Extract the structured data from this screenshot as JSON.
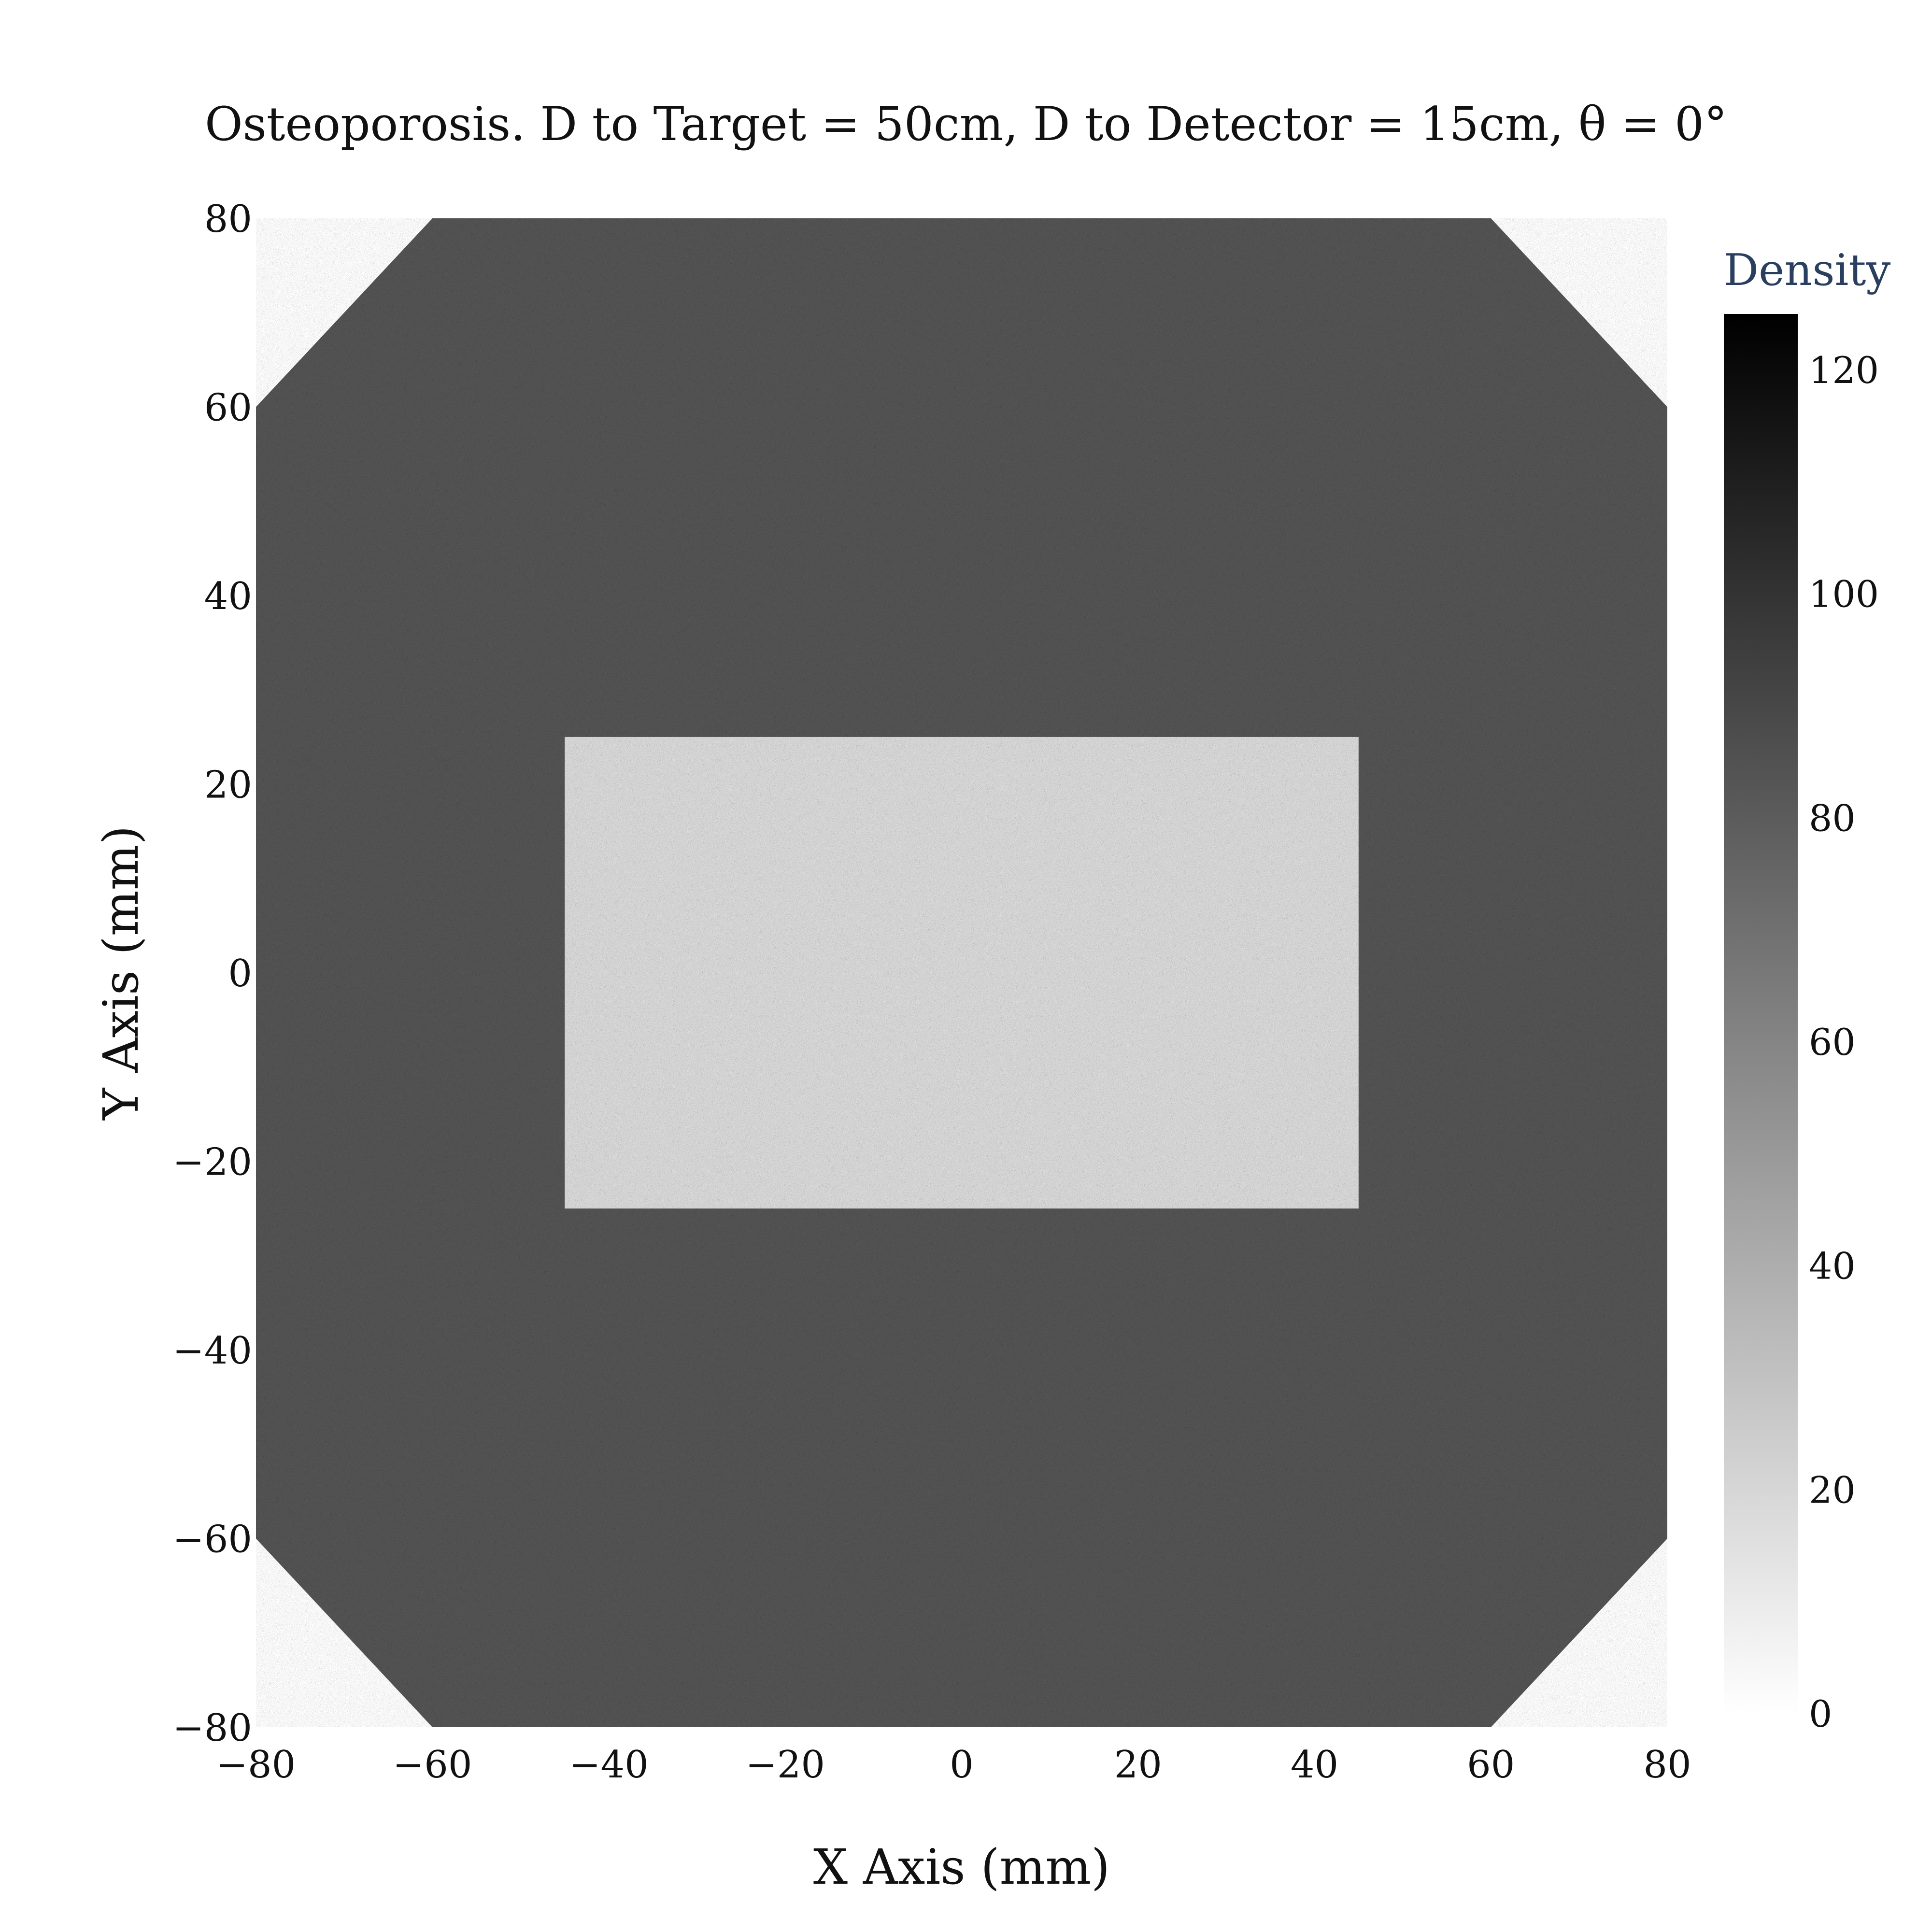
{
  "chart_data": {
    "type": "heatmap",
    "title": "Osteoporosis. D to Target = 50cm, D to Detector = 15cm, θ = 0°",
    "xlabel": "X Axis (mm)",
    "ylabel": "Y Axis (mm)",
    "xlim": [
      -80,
      80
    ],
    "ylim": [
      -80,
      80
    ],
    "x_ticks": [
      -80,
      -60,
      -40,
      -20,
      0,
      20,
      40,
      60,
      80
    ],
    "y_ticks": [
      -80,
      -60,
      -40,
      -20,
      0,
      20,
      40,
      60,
      80
    ],
    "x_tick_labels": [
      "−80",
      "−60",
      "−40",
      "−20",
      "0",
      "20",
      "40",
      "60",
      "80"
    ],
    "y_tick_labels": [
      "−80",
      "−60",
      "−40",
      "−20",
      "0",
      "20",
      "40",
      "60",
      "80"
    ],
    "colorbar": {
      "title": "Density",
      "range": [
        0,
        125
      ],
      "ticks": [
        0,
        20,
        40,
        60,
        80,
        100,
        120
      ],
      "colors": [
        "#ffffff",
        "#000000"
      ]
    },
    "regions": [
      {
        "name": "outer",
        "shape": "octagon",
        "x_range": [
          -80,
          80
        ],
        "y_range": [
          -80,
          80
        ],
        "corner_cut": 20,
        "density": 84
      },
      {
        "name": "inner",
        "shape": "rectangle",
        "x_range": [
          -45,
          45
        ],
        "y_range": [
          -25,
          25
        ],
        "density": 18
      }
    ],
    "grid": false,
    "legend": "none"
  }
}
